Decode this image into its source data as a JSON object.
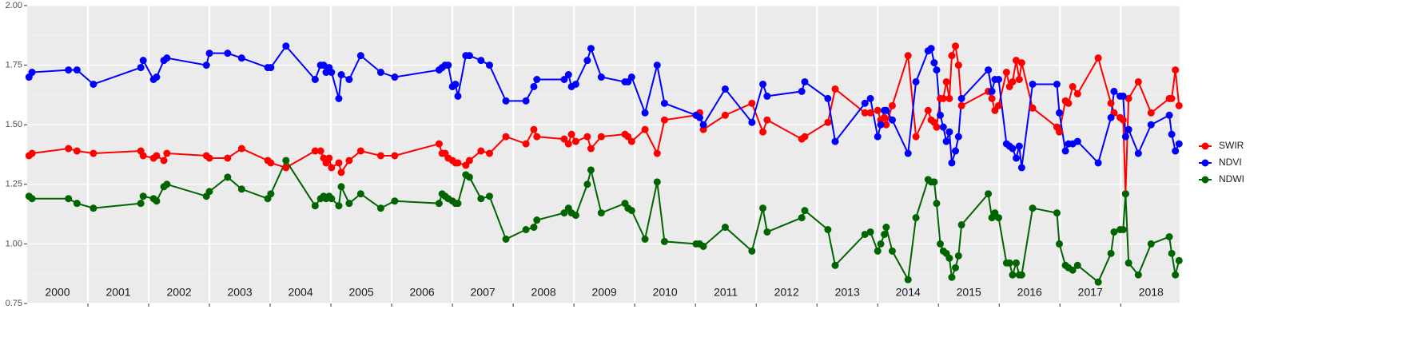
{
  "chart_data": {
    "type": "line",
    "x": [
      2000.03,
      2000.08,
      2000.68,
      2000.82,
      2001.09,
      2001.87,
      2001.91,
      2002.08,
      2002.13,
      2002.25,
      2002.3,
      2002.95,
      2003.0,
      2003.3,
      2003.53,
      2003.96,
      2004.01,
      2004.26,
      2004.74,
      2004.83,
      2004.88,
      2004.92,
      2004.97,
      2005.01,
      2005.13,
      2005.17,
      2005.3,
      2005.49,
      2005.82,
      2006.05,
      2006.78,
      2006.83,
      2006.88,
      2006.93,
      2007.0,
      2007.05,
      2007.09,
      2007.22,
      2007.28,
      2007.47,
      2007.61,
      2007.88,
      2008.21,
      2008.34,
      2008.39,
      2008.84,
      2008.91,
      2008.96,
      2009.03,
      2009.22,
      2009.28,
      2009.45,
      2009.84,
      2009.89,
      2009.95,
      2010.17,
      2010.37,
      2010.49,
      2011.01,
      2011.07,
      2011.13,
      2011.49,
      2011.93,
      2012.11,
      2012.18,
      2012.75,
      2012.8,
      2013.18,
      2013.3,
      2013.79,
      2013.88,
      2014.0,
      2014.05,
      2014.11,
      2014.14,
      2014.24,
      2014.5,
      2014.63,
      2014.83,
      2014.88,
      2014.93,
      2014.97,
      2015.03,
      2015.08,
      2015.13,
      2015.18,
      2015.22,
      2015.28,
      2015.33,
      2015.38,
      2015.82,
      2015.88,
      2015.93,
      2015.99,
      2016.12,
      2016.17,
      2016.22,
      2016.28,
      2016.33,
      2016.37,
      2016.55,
      2016.95,
      2016.99,
      2017.09,
      2017.14,
      2017.21,
      2017.29,
      2017.63,
      2017.84,
      2017.89,
      2017.99,
      2018.04,
      2018.08,
      2018.13,
      2018.29,
      2018.5,
      2018.8,
      2018.84,
      2018.9,
      2018.96
    ],
    "series": [
      {
        "name": "SWIR",
        "color": "#ff0000",
        "values": [
          1.37,
          1.38,
          1.4,
          1.39,
          1.38,
          1.39,
          1.37,
          1.36,
          1.37,
          1.35,
          1.38,
          1.37,
          1.36,
          1.36,
          1.4,
          1.35,
          1.34,
          1.32,
          1.39,
          1.39,
          1.36,
          1.34,
          1.36,
          1.32,
          1.34,
          1.3,
          1.35,
          1.39,
          1.37,
          1.37,
          1.42,
          1.38,
          1.38,
          1.36,
          1.35,
          1.34,
          1.34,
          1.33,
          1.35,
          1.39,
          1.38,
          1.45,
          1.42,
          1.48,
          1.45,
          1.44,
          1.42,
          1.46,
          1.43,
          1.45,
          1.4,
          1.45,
          1.46,
          1.45,
          1.43,
          1.48,
          1.38,
          1.52,
          1.54,
          1.55,
          1.48,
          1.54,
          1.59,
          1.47,
          1.52,
          1.44,
          1.45,
          1.51,
          1.65,
          1.55,
          1.55,
          1.56,
          1.52,
          1.53,
          1.5,
          1.58,
          1.79,
          1.45,
          1.56,
          1.52,
          1.51,
          1.49,
          1.61,
          1.61,
          1.68,
          1.61,
          1.79,
          1.83,
          1.75,
          1.58,
          1.64,
          1.61,
          1.56,
          1.58,
          1.72,
          1.66,
          1.68,
          1.77,
          1.69,
          1.76,
          1.57,
          1.49,
          1.47,
          1.6,
          1.59,
          1.66,
          1.63,
          1.78,
          1.59,
          1.55,
          1.53,
          1.52,
          1.21,
          1.61,
          1.68,
          1.55,
          1.61,
          1.61,
          1.73,
          1.58
        ]
      },
      {
        "name": "NDVI",
        "color": "#0000ff",
        "values": [
          1.7,
          1.72,
          1.73,
          1.73,
          1.67,
          1.74,
          1.77,
          1.69,
          1.7,
          1.77,
          1.78,
          1.75,
          1.8,
          1.8,
          1.78,
          1.74,
          1.74,
          1.83,
          1.69,
          1.75,
          1.75,
          1.72,
          1.74,
          1.72,
          1.61,
          1.71,
          1.69,
          1.79,
          1.72,
          1.7,
          1.73,
          1.74,
          1.75,
          1.75,
          1.66,
          1.67,
          1.62,
          1.79,
          1.79,
          1.77,
          1.75,
          1.6,
          1.6,
          1.66,
          1.69,
          1.69,
          1.71,
          1.66,
          1.67,
          1.77,
          1.82,
          1.7,
          1.68,
          1.68,
          1.7,
          1.55,
          1.75,
          1.59,
          1.54,
          1.53,
          1.5,
          1.65,
          1.51,
          1.67,
          1.62,
          1.64,
          1.68,
          1.61,
          1.43,
          1.59,
          1.61,
          1.45,
          1.5,
          1.56,
          1.56,
          1.52,
          1.38,
          1.68,
          1.81,
          1.82,
          1.76,
          1.73,
          1.54,
          1.49,
          1.43,
          1.47,
          1.34,
          1.39,
          1.45,
          1.61,
          1.73,
          1.64,
          1.69,
          1.69,
          1.42,
          1.41,
          1.4,
          1.36,
          1.41,
          1.32,
          1.67,
          1.67,
          1.55,
          1.39,
          1.42,
          1.42,
          1.43,
          1.34,
          1.53,
          1.64,
          1.62,
          1.62,
          1.45,
          1.48,
          1.38,
          1.5,
          1.54,
          1.46,
          1.39,
          1.42
        ]
      },
      {
        "name": "NDWI",
        "color": "#006400",
        "values": [
          1.2,
          1.19,
          1.19,
          1.17,
          1.15,
          1.17,
          1.2,
          1.19,
          1.18,
          1.24,
          1.25,
          1.2,
          1.22,
          1.28,
          1.23,
          1.19,
          1.21,
          1.35,
          1.16,
          1.19,
          1.2,
          1.19,
          1.2,
          1.19,
          1.16,
          1.24,
          1.17,
          1.21,
          1.15,
          1.18,
          1.17,
          1.21,
          1.2,
          1.19,
          1.18,
          1.17,
          1.17,
          1.29,
          1.28,
          1.19,
          1.2,
          1.02,
          1.06,
          1.07,
          1.1,
          1.13,
          1.15,
          1.13,
          1.12,
          1.25,
          1.31,
          1.13,
          1.17,
          1.15,
          1.14,
          1.02,
          1.26,
          1.01,
          1.0,
          1.0,
          0.99,
          1.07,
          0.97,
          1.15,
          1.05,
          1.11,
          1.14,
          1.06,
          0.91,
          1.04,
          1.05,
          0.97,
          1.0,
          1.04,
          1.07,
          0.97,
          0.85,
          1.11,
          1.27,
          1.26,
          1.26,
          1.17,
          1.0,
          0.97,
          0.96,
          0.94,
          0.86,
          0.9,
          0.95,
          1.08,
          1.21,
          1.11,
          1.13,
          1.11,
          0.92,
          0.92,
          0.87,
          0.92,
          0.87,
          0.87,
          1.15,
          1.13,
          1.0,
          0.91,
          0.9,
          0.89,
          0.91,
          0.84,
          0.96,
          1.05,
          1.06,
          1.06,
          1.21,
          0.92,
          0.87,
          1.0,
          1.03,
          0.96,
          0.87,
          0.93
        ]
      }
    ],
    "xlim": [
      2000,
      2018.97
    ],
    "xticks": [
      {
        "value": 2000.5,
        "label": "2000"
      },
      {
        "value": 2001.5,
        "label": "2001"
      },
      {
        "value": 2002.5,
        "label": "2002"
      },
      {
        "value": 2003.5,
        "label": "2003"
      },
      {
        "value": 2004.5,
        "label": "2004"
      },
      {
        "value": 2005.5,
        "label": "2005"
      },
      {
        "value": 2006.5,
        "label": "2006"
      },
      {
        "value": 2007.5,
        "label": "2007"
      },
      {
        "value": 2008.5,
        "label": "2008"
      },
      {
        "value": 2009.5,
        "label": "2009"
      },
      {
        "value": 2010.5,
        "label": "2010"
      },
      {
        "value": 2011.5,
        "label": "2011"
      },
      {
        "value": 2012.5,
        "label": "2012"
      },
      {
        "value": 2013.5,
        "label": "2013"
      },
      {
        "value": 2014.5,
        "label": "2014"
      },
      {
        "value": 2015.5,
        "label": "2015"
      },
      {
        "value": 2016.5,
        "label": "2016"
      },
      {
        "value": 2017.5,
        "label": "2017"
      },
      {
        "value": 2018.5,
        "label": "2018"
      }
    ],
    "ylim": [
      0.75,
      2.0
    ],
    "yticks": [
      {
        "value": 0.75,
        "label": "0.75"
      },
      {
        "value": 1.0,
        "label": "1.00"
      },
      {
        "value": 1.25,
        "label": "1.25"
      },
      {
        "value": 1.5,
        "label": "1.50"
      },
      {
        "value": 1.75,
        "label": "1.75"
      },
      {
        "value": 2.0,
        "label": "2.00"
      }
    ],
    "grid": true,
    "legend": "right"
  }
}
